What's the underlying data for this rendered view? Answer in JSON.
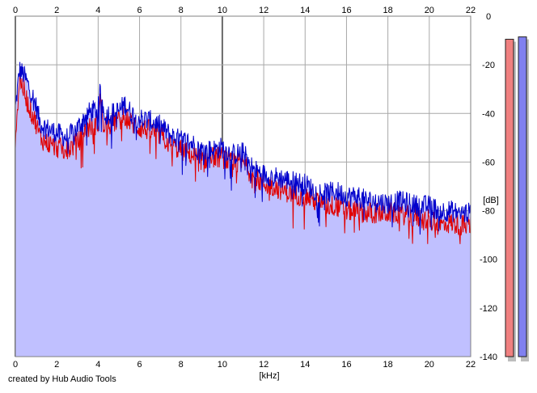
{
  "chart_data": {
    "type": "area",
    "title": "",
    "xlabel": "[kHz]",
    "ylabel": "[dB]",
    "xlim": [
      0,
      22
    ],
    "ylim": [
      -140,
      0
    ],
    "x_ticks": [
      0,
      2,
      4,
      6,
      8,
      10,
      12,
      14,
      16,
      18,
      20,
      22
    ],
    "y_ticks": [
      0,
      -20,
      -40,
      -60,
      -80,
      -100,
      -120,
      -140
    ],
    "y_tick_labels": [
      "0",
      "-20",
      "-40",
      "-60",
      "-80",
      "-100",
      "-120",
      "-140"
    ],
    "grid": true,
    "fill_color": "#c0c0ff",
    "series": [
      {
        "color": "#0000cc",
        "x": [
          0,
          0.2,
          0.4,
          0.6,
          0.8,
          1.0,
          1.2,
          1.5,
          2.0,
          2.5,
          3.0,
          3.5,
          4.0,
          4.1,
          4.3,
          4.6,
          5.0,
          5.3,
          5.6,
          6.0,
          6.5,
          7.0,
          7.5,
          8.0,
          8.5,
          9.0,
          9.5,
          10.0,
          10.5,
          11.0,
          11.5,
          12.0,
          12.5,
          13.0,
          13.5,
          14.0,
          14.5,
          15.0,
          15.5,
          16.0,
          16.5,
          17.0,
          17.5,
          18.0,
          18.5,
          19.0,
          19.5,
          20.0,
          20.5,
          21.0,
          21.5,
          22.0
        ],
        "y": [
          -38,
          -22,
          -24,
          -28,
          -32,
          -37,
          -44,
          -46,
          -48,
          -50,
          -46,
          -40,
          -38,
          -31,
          -40,
          -40,
          -39,
          -36,
          -40,
          -42,
          -43,
          -45,
          -49,
          -51,
          -52,
          -55,
          -55,
          -54,
          -57,
          -56,
          -63,
          -65,
          -66,
          -67,
          -68,
          -69,
          -72,
          -73,
          -72,
          -74,
          -74,
          -76,
          -76,
          -77,
          -76,
          -77,
          -78,
          -78,
          -80,
          -80,
          -81,
          -81
        ]
      },
      {
        "color": "#e00000",
        "x": [
          0,
          0.2,
          0.4,
          0.6,
          0.8,
          1.0,
          1.2,
          1.5,
          2.0,
          2.5,
          3.0,
          3.5,
          4.0,
          4.1,
          4.3,
          4.6,
          5.0,
          5.3,
          5.6,
          6.0,
          6.5,
          7.0,
          7.5,
          8.0,
          8.5,
          9.0,
          9.5,
          10.0,
          10.5,
          11.0,
          11.5,
          12.0,
          12.5,
          13.0,
          13.5,
          14.0,
          14.5,
          15.0,
          15.5,
          16.0,
          16.5,
          17.0,
          17.5,
          18.0,
          18.5,
          19.0,
          19.5,
          20.0,
          20.5,
          21.0,
          21.5,
          22.0
        ],
        "y": [
          -50,
          -26,
          -30,
          -36,
          -40,
          -44,
          -50,
          -52,
          -54,
          -55,
          -52,
          -46,
          -44,
          -34,
          -44,
          -44,
          -43,
          -41,
          -44,
          -46,
          -47,
          -49,
          -53,
          -55,
          -57,
          -59,
          -58,
          -58,
          -61,
          -60,
          -66,
          -69,
          -70,
          -72,
          -73,
          -74,
          -76,
          -78,
          -78,
          -80,
          -80,
          -81,
          -81,
          -81,
          -81,
          -82,
          -83,
          -84,
          -86,
          -85,
          -86,
          -86
        ]
      }
    ]
  },
  "level_meters": {
    "scale": [
      -140,
      0
    ],
    "left": {
      "level": -5,
      "color": "#f08080"
    },
    "right": {
      "level": -4,
      "color": "#8080f0"
    }
  },
  "credit": "created by Hub Audio Tools"
}
